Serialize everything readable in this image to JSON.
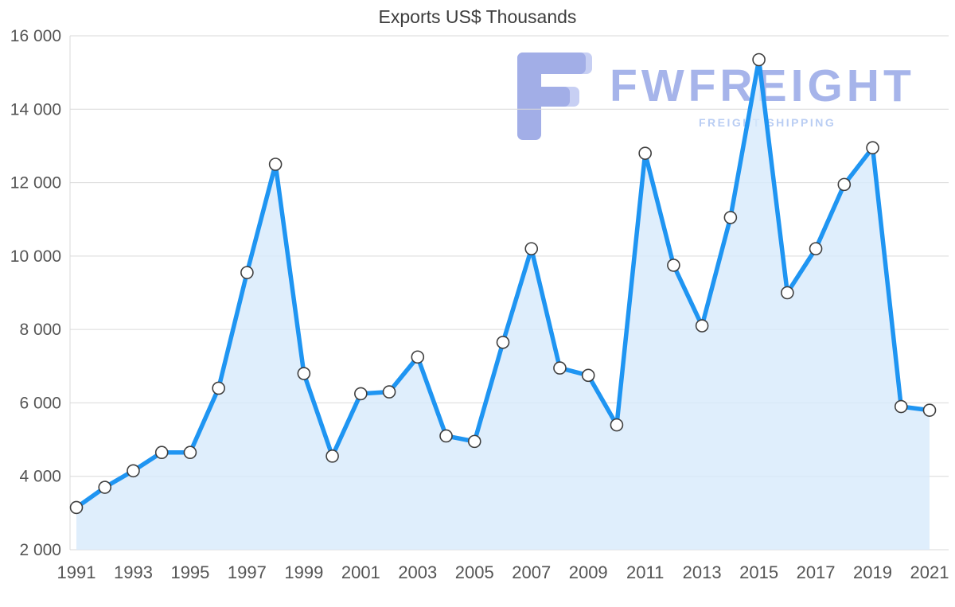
{
  "chart_data": {
    "type": "area",
    "title": "Exports US$ Thousands",
    "series_name": "Exports US$ Thousands",
    "x": [
      1991,
      1992,
      1993,
      1994,
      1995,
      1996,
      1997,
      1998,
      1999,
      2000,
      2001,
      2002,
      2003,
      2004,
      2005,
      2006,
      2007,
      2008,
      2009,
      2010,
      2011,
      2012,
      2013,
      2014,
      2015,
      2016,
      2017,
      2018,
      2019,
      2020,
      2021
    ],
    "values": [
      3150,
      3700,
      4150,
      4650,
      4650,
      6400,
      9550,
      12500,
      6800,
      4550,
      6250,
      6300,
      7250,
      5100,
      4950,
      7650,
      10200,
      6950,
      6750,
      5400,
      12800,
      9750,
      8100,
      11050,
      15350,
      9000,
      10200,
      11950,
      12950,
      5900,
      5800
    ],
    "x_tick_labels": [
      "1991",
      "1993",
      "1995",
      "1997",
      "1999",
      "2001",
      "2003",
      "2005",
      "2007",
      "2009",
      "2011",
      "2013",
      "2015",
      "2017",
      "2019",
      "2021"
    ],
    "y_ticks": [
      2000,
      4000,
      6000,
      8000,
      10000,
      12000,
      14000,
      16000
    ],
    "y_tick_labels": [
      "2 000",
      "4 000",
      "6 000",
      "8 000",
      "10 000",
      "12 000",
      "14 000",
      "16 000"
    ],
    "ylim": [
      2000,
      16000
    ],
    "grid": "horizontal",
    "legend": "none",
    "markers": "circle",
    "colors": {
      "line": "#1f95f2",
      "fill": "#d7eafb",
      "marker_fill": "#ffffff",
      "marker_stroke": "#3f3f3f",
      "grid": "#d9d9d9",
      "axis_text": "#555555",
      "title_text": "#3d3d3d"
    }
  },
  "watermark": {
    "brand": "FWFREIGHT",
    "tagline": "FREIGHT SHIPPING",
    "brand_color": "#a6b4ea",
    "tagline_color": "#b9cdf3",
    "logo_dark": "#a2aee7",
    "logo_light": "#c7cff3"
  }
}
